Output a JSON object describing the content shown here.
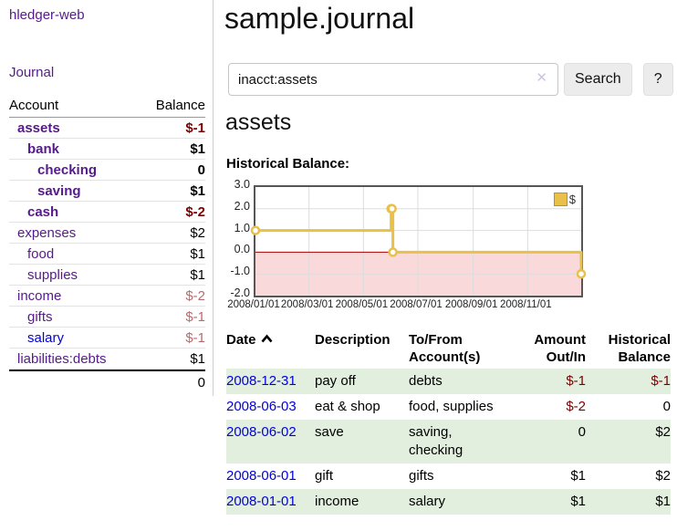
{
  "colors": {
    "link_purple": "#551a8b",
    "link_blue": "#0000e4",
    "negative": "#7d0000",
    "negative_soft": "#bb6a6a",
    "row_stripe_green": "#e2efde",
    "chart_line_gold": "#e8c04a",
    "chart_negative_fill": "#f9d9d9"
  },
  "sidebar": {
    "brand": "hledger-web",
    "journal_label": "Journal",
    "table": {
      "account_header": "Account",
      "balance_header": "Balance",
      "accounts": [
        {
          "name": "assets",
          "indent": 1,
          "balance": "$-1",
          "inacct": true
        },
        {
          "name": "bank",
          "indent": 2,
          "balance": "$1",
          "inacct": true
        },
        {
          "name": "checking",
          "indent": 3,
          "balance": "0",
          "inacct": true
        },
        {
          "name": "saving",
          "indent": 3,
          "balance": "$1",
          "inacct": true
        },
        {
          "name": "cash",
          "indent": 2,
          "balance": "$-2",
          "inacct": true
        },
        {
          "name": "expenses",
          "indent": 1,
          "balance": "$2",
          "inacct": false
        },
        {
          "name": "food",
          "indent": 2,
          "balance": "$1",
          "inacct": false
        },
        {
          "name": "supplies",
          "indent": 2,
          "balance": "$1",
          "inacct": false
        },
        {
          "name": "income",
          "indent": 1,
          "balance": "$-2",
          "inacct": false
        },
        {
          "name": "gifts",
          "indent": 2,
          "balance": "$-1",
          "inacct": false
        },
        {
          "name": "salary",
          "indent": 2,
          "balance": "$-1",
          "inacct": false,
          "unvisited": true
        },
        {
          "name": "liabilities:debts",
          "indent": 1,
          "balance": "$1",
          "inacct": false
        }
      ],
      "total": "0"
    }
  },
  "header": {
    "title": "sample.journal"
  },
  "search": {
    "value": "inacct:assets",
    "clear_icon": "✕",
    "button_label": "Search",
    "help_label": "?"
  },
  "page": {
    "account_heading": "assets"
  },
  "chart_data": {
    "type": "line",
    "step": true,
    "title": "Historical Balance:",
    "series": [
      {
        "name": "$",
        "color": "#e8c04a",
        "points": [
          {
            "date": "2008-01-01",
            "value": 1
          },
          {
            "date": "2008-06-01",
            "value": 2
          },
          {
            "date": "2008-06-02",
            "value": 2
          },
          {
            "date": "2008-06-03",
            "value": 0
          },
          {
            "date": "2008-12-31",
            "value": -1
          }
        ]
      }
    ],
    "x_range": [
      "2008-01-01",
      "2008-12-31"
    ],
    "x_tick_dates": [
      "2008-01-01",
      "2008-03-01",
      "2008-05-01",
      "2008-07-01",
      "2008-09-01",
      "2008-11-01"
    ],
    "x_tick_labels": [
      "2008/01/01",
      "2008/03/01",
      "2008/05/01",
      "2008/07/01",
      "2008/09/01",
      "2008/11/01"
    ],
    "y_tick_labels": [
      "3.0",
      "2.0",
      "1.0",
      "0.0",
      "-1.0",
      "-2.0"
    ],
    "ylim": [
      -2,
      3
    ],
    "grid": true,
    "legend_position": "top-right",
    "negative_fill": "#f9d9d9",
    "zero_line_color": "#a40000"
  },
  "register": {
    "columns": [
      "Date",
      "Description",
      "To/From Account(s)",
      "Amount Out/In",
      "Historical Balance"
    ],
    "sort": "ascending",
    "rows": [
      {
        "date": "2008-12-31",
        "description": "pay off",
        "accounts": "debts",
        "amount": "$-1",
        "balance": "$-1"
      },
      {
        "date": "2008-06-03",
        "description": "eat & shop",
        "accounts": "food, supplies",
        "amount": "$-2",
        "balance": "0"
      },
      {
        "date": "2008-06-02",
        "description": "save",
        "accounts": "saving, checking",
        "amount": "0",
        "balance": "$2"
      },
      {
        "date": "2008-06-01",
        "description": "gift",
        "accounts": "gifts",
        "amount": "$1",
        "balance": "$2"
      },
      {
        "date": "2008-01-01",
        "description": "income",
        "accounts": "salary",
        "amount": "$1",
        "balance": "$1"
      }
    ]
  }
}
